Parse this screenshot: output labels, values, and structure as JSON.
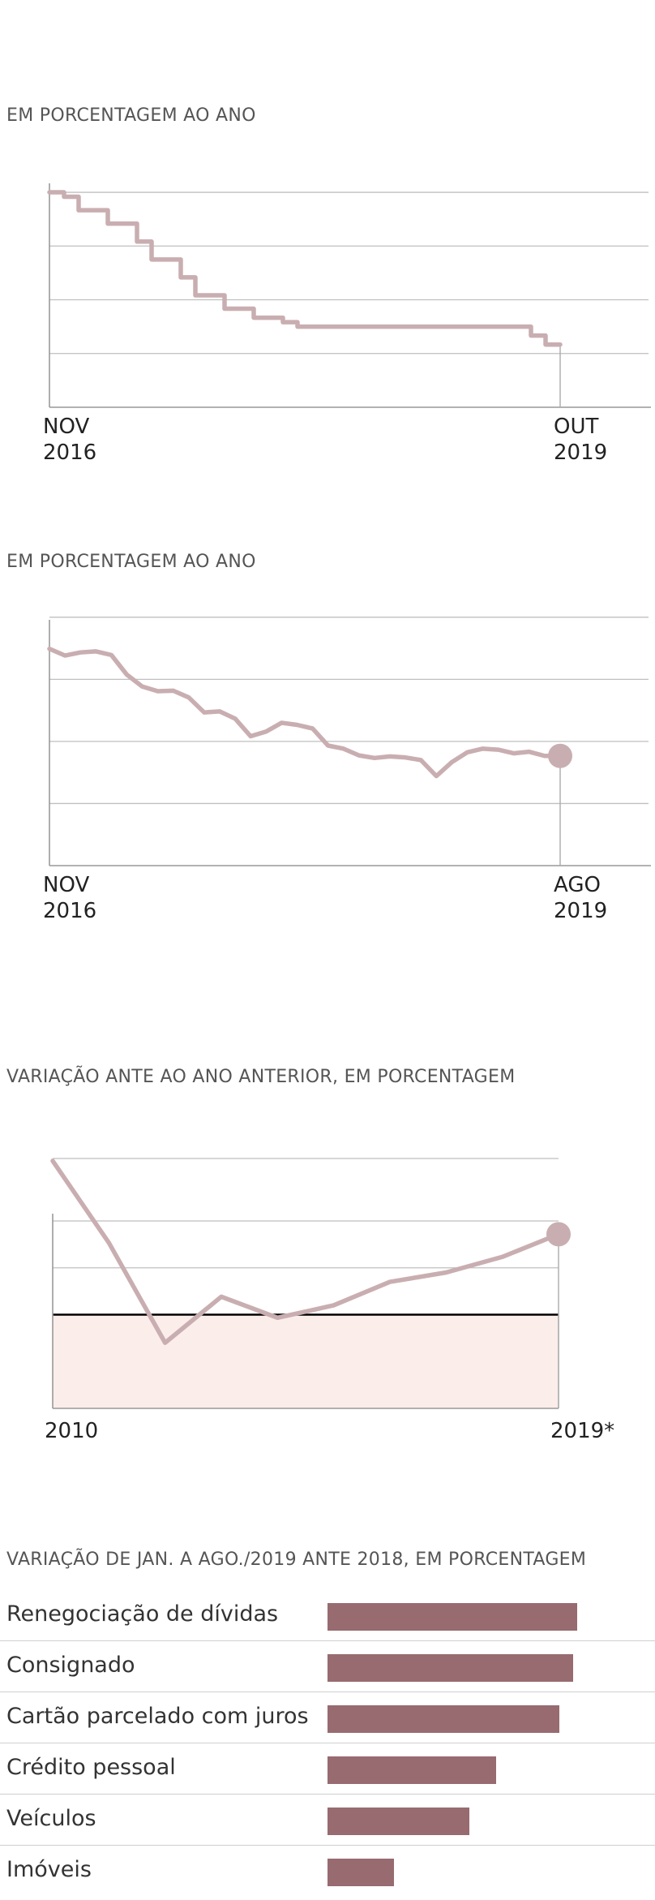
{
  "colors": {
    "line": "#c9aeb1",
    "bar": "#976b6f",
    "negative_area": "#fbede9",
    "grid": "#bfbfbf",
    "zero_line": "#000000"
  },
  "chart_data": [
    {
      "type": "line",
      "subtitle": "EM PORCENTAGEM AO ANO",
      "step": true,
      "x_tick_labels": [
        {
          "x": 0,
          "line1": "NOV",
          "line2": "2016"
        },
        {
          "x": 35,
          "line1": "OUT",
          "line2": "2019"
        }
      ],
      "x": [
        0,
        1,
        2,
        3,
        4,
        5,
        6,
        7,
        8,
        9,
        10,
        11,
        12,
        13,
        14,
        15,
        16,
        17,
        18,
        19,
        20,
        21,
        22,
        23,
        24,
        25,
        26,
        27,
        28,
        29,
        30,
        31,
        32,
        33,
        34,
        35
      ],
      "values": [
        14.0,
        13.75,
        13.0,
        13.0,
        12.25,
        12.25,
        11.25,
        10.25,
        10.25,
        9.25,
        8.25,
        8.25,
        7.5,
        7.5,
        7.0,
        7.0,
        6.75,
        6.5,
        6.5,
        6.5,
        6.5,
        6.5,
        6.5,
        6.5,
        6.5,
        6.5,
        6.5,
        6.5,
        6.5,
        6.5,
        6.5,
        6.5,
        6.5,
        6.0,
        5.5,
        5.5
      ],
      "ylim": [
        2,
        14.5
      ],
      "y_gridlines": [
        5,
        8,
        11,
        14
      ],
      "endpoint_marker": false
    },
    {
      "type": "line",
      "subtitle": "EM PORCENTAGEM AO ANO",
      "x_tick_labels": [
        {
          "x": 0,
          "line1": "NOV",
          "line2": "2016"
        },
        {
          "x": 33,
          "line1": "AGO",
          "line2": "2019"
        }
      ],
      "x": [
        0,
        1,
        2,
        3,
        4,
        5,
        6,
        7,
        8,
        9,
        10,
        11,
        12,
        13,
        14,
        15,
        16,
        17,
        18,
        19,
        20,
        21,
        22,
        23,
        24,
        25,
        26,
        27,
        28,
        29,
        30,
        31,
        32,
        33
      ],
      "values": [
        41.9,
        40.6,
        41.2,
        41.4,
        40.7,
        36.9,
        34.6,
        33.7,
        33.8,
        32.5,
        29.6,
        29.8,
        28.4,
        25.0,
        25.9,
        27.6,
        27.2,
        26.5,
        23.2,
        22.6,
        21.3,
        20.8,
        21.1,
        20.9,
        20.4,
        17.3,
        20.0,
        21.9,
        22.6,
        22.4,
        21.7,
        22.0,
        21.2,
        21.2
      ],
      "ylim": [
        0,
        47.5
      ],
      "y_gridlines": [
        12,
        24,
        36,
        48
      ],
      "endpoint_marker": true
    },
    {
      "type": "area",
      "subtitle": "VARIAÇÃO ANTE AO ANO ANTERIOR, EM PORCENTAGEM",
      "categories": [
        "2010",
        "2011",
        "2012",
        "2013",
        "2014",
        "2015",
        "2016",
        "2017",
        "2018",
        "2019*"
      ],
      "x_tick_labels": [
        "2010",
        "",
        "",
        "",
        "",
        "",
        "",
        "",
        "",
        "2019*"
      ],
      "values": [
        19.7,
        9.2,
        -3.6,
        2.3,
        -0.4,
        1.2,
        4.2,
        5.4,
        7.4,
        10.3
      ],
      "ylim": [
        -12,
        20
      ],
      "y_gridlines": [
        0,
        6,
        12,
        20
      ],
      "zero_line": 0,
      "endpoint_marker": true
    },
    {
      "type": "bar",
      "orientation": "horizontal",
      "subtitle": "VARIAÇÃO DE JAN. A AGO./2019 ANTE 2018, EM PORCENTAGEM",
      "categories": [
        "Renegociação de dívidas",
        "Consignado",
        "Cartão parcelado com juros",
        "Crédito pessoal",
        "Veículos",
        "Imóveis"
      ],
      "values": [
        26.9,
        26.5,
        25.0,
        18.2,
        15.3,
        7.2
      ],
      "xlim": [
        0,
        30
      ]
    }
  ]
}
